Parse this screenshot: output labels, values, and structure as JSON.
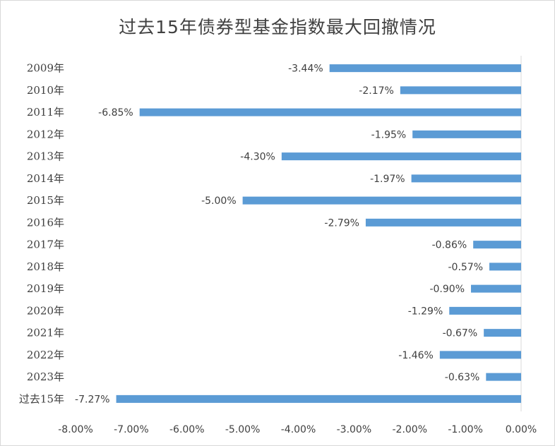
{
  "chart_data": {
    "type": "bar",
    "orientation": "horizontal",
    "title": "过去15年债券型基金指数最大回撤情况",
    "categories": [
      "2009年",
      "2010年",
      "2011年",
      "2012年",
      "2013年",
      "2014年",
      "2015年",
      "2016年",
      "2017年",
      "2018年",
      "2019年",
      "2020年",
      "2021年",
      "2022年",
      "2023年",
      "过去15年"
    ],
    "values": [
      -3.44,
      -2.17,
      -6.85,
      -1.95,
      -4.3,
      -1.97,
      -5.0,
      -2.79,
      -0.86,
      -0.57,
      -0.9,
      -1.29,
      -0.67,
      -1.46,
      -0.63,
      -7.27
    ],
    "data_labels": [
      "-3.44%",
      "-2.17%",
      "-6.85%",
      "-1.95%",
      "-4.30%",
      "-1.97%",
      "-5.00%",
      "-2.79%",
      "-0.86%",
      "-0.57%",
      "-0.90%",
      "-1.29%",
      "-0.67%",
      "-1.46%",
      "-0.63%",
      "-7.27%"
    ],
    "xlim": [
      -8,
      0
    ],
    "x_ticks": [
      "-8.00%",
      "-7.00%",
      "-6.00%",
      "-5.00%",
      "-4.00%",
      "-3.00%",
      "-2.00%",
      "-1.00%",
      "0.00%"
    ],
    "xlabel": "",
    "ylabel": "",
    "grid": false,
    "legend": "none",
    "bar_color": "#5b9bd5",
    "text_color": "#404040",
    "axis_color": "#d9d9d9"
  }
}
